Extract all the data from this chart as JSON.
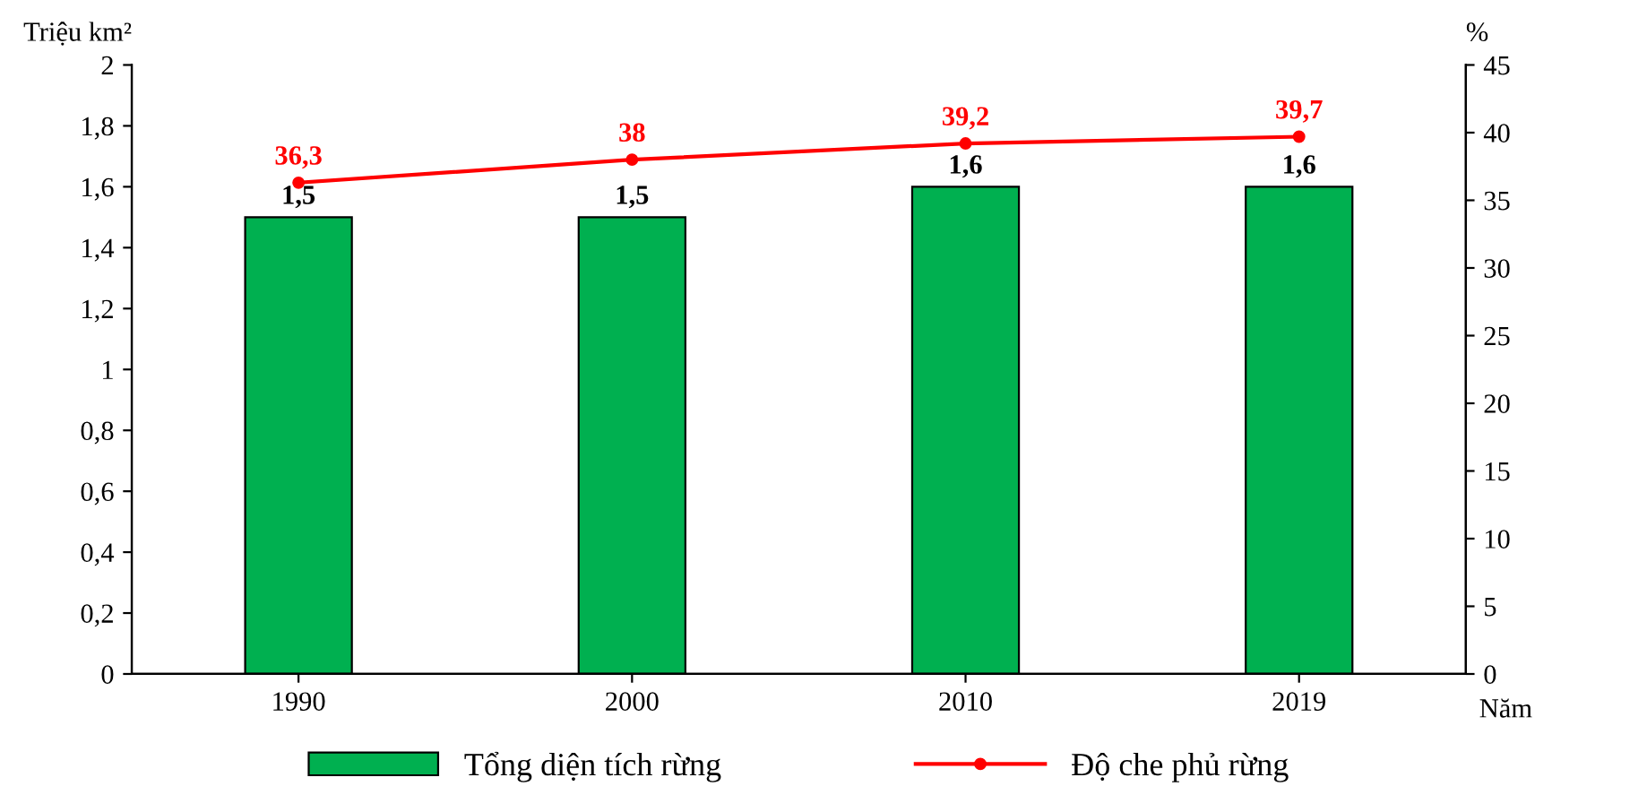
{
  "chart_data": {
    "type": "bar",
    "categories": [
      "1990",
      "2000",
      "2010",
      "2019"
    ],
    "xlabel": "Năm",
    "ylabel": "Triệu km²",
    "y2label": "%",
    "series": [
      {
        "name": "Tổng diện tích rừng",
        "color": "#00b050",
        "values": [
          1.5,
          1.5,
          1.6,
          1.6
        ],
        "value_labels": [
          "1,5",
          "1,5",
          "1,6",
          "1,6"
        ]
      },
      {
        "name": "Độ che phủ rừng",
        "type": "line",
        "axis": "y2",
        "color": "#ff0000",
        "marker": "circle",
        "values": [
          36.3,
          38,
          39.2,
          39.7
        ],
        "value_labels": [
          "36,3",
          "38",
          "39,2",
          "39,7"
        ]
      }
    ],
    "ylim": [
      0,
      2
    ],
    "yticks": [
      0,
      {
        "value": 0.2,
        "label": "0,2"
      },
      {
        "value": 0.4,
        "label": "0,4"
      },
      {
        "value": 0.6,
        "label": "0,6"
      },
      {
        "value": 0.8,
        "label": "0,8"
      },
      1,
      {
        "value": 1.2,
        "label": "1,2"
      },
      {
        "value": 1.4,
        "label": "1,4"
      },
      {
        "value": 1.6,
        "label": "1,6"
      },
      {
        "value": 1.8,
        "label": "1,8"
      },
      2
    ],
    "y2lim": [
      0,
      45
    ],
    "y2ticks": [
      0,
      5,
      10,
      15,
      20,
      25,
      30,
      35,
      40,
      45
    ],
    "grid": false,
    "legend": "bottom"
  }
}
